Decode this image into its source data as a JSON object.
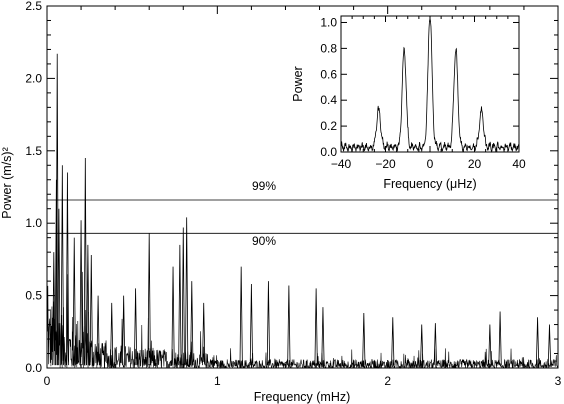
{
  "chart_data": [
    {
      "type": "line",
      "title": "",
      "xlabel": "Frequency (mHz)",
      "ylabel": "Power (m/s)²",
      "xlim": [
        0,
        3
      ],
      "ylim": [
        0,
        2.5
      ],
      "x_ticks": [
        0,
        1,
        2,
        3
      ],
      "x_tick_labels": [
        "0",
        "1",
        "2",
        "3"
      ],
      "y_ticks": [
        0.0,
        0.5,
        1.0,
        1.5,
        2.0,
        2.5
      ],
      "y_tick_labels": [
        "0.0",
        "0.5",
        "1.0",
        "1.5",
        "2.0",
        "2.5"
      ],
      "grid": false,
      "significance_levels": [
        {
          "label": "99%",
          "value": 1.16
        },
        {
          "label": "90%",
          "value": 0.93
        }
      ],
      "peaks": {
        "x": [
          0.04,
          0.055,
          0.06,
          0.07,
          0.09,
          0.12,
          0.16,
          0.2,
          0.225,
          0.24,
          0.26,
          0.3,
          0.38,
          0.45,
          0.52,
          0.6,
          0.74,
          0.78,
          0.8,
          0.82,
          0.85,
          0.92,
          1.14,
          1.2,
          1.3,
          1.42,
          1.58,
          1.62,
          1.86,
          2.03,
          2.2,
          2.28,
          2.6,
          2.66,
          2.88,
          2.95
        ],
        "y": [
          0.8,
          1.3,
          2.17,
          1.1,
          1.4,
          1.35,
          0.9,
          1.02,
          1.45,
          0.85,
          0.78,
          0.5,
          0.45,
          0.5,
          0.55,
          0.93,
          0.7,
          0.85,
          0.97,
          1.04,
          0.6,
          0.45,
          0.7,
          0.58,
          0.6,
          0.57,
          0.55,
          0.42,
          0.38,
          0.35,
          0.3,
          0.31,
          0.3,
          0.39,
          0.35,
          0.3
        ]
      }
    },
    {
      "type": "line",
      "title": "",
      "xlabel": "Frequency (μHz)",
      "ylabel": "Power",
      "xlim": [
        -40,
        40
      ],
      "ylim": [
        0,
        1.05
      ],
      "x_ticks": [
        -40,
        -20,
        0,
        20,
        40
      ],
      "x_tick_labels": [
        "−40",
        "−20",
        "0",
        "20",
        "40"
      ],
      "y_ticks": [
        0.0,
        0.2,
        0.4,
        0.6,
        0.8,
        1.0
      ],
      "y_tick_labels": [
        "0.0",
        "0.2",
        "0.4",
        "0.6",
        "0.8",
        "1.0"
      ],
      "grid": false,
      "peaks": {
        "x": [
          -23.1,
          -11.6,
          0,
          11.6,
          23.1
        ],
        "y": [
          0.29,
          0.75,
          1.02,
          0.75,
          0.29
        ]
      }
    }
  ]
}
